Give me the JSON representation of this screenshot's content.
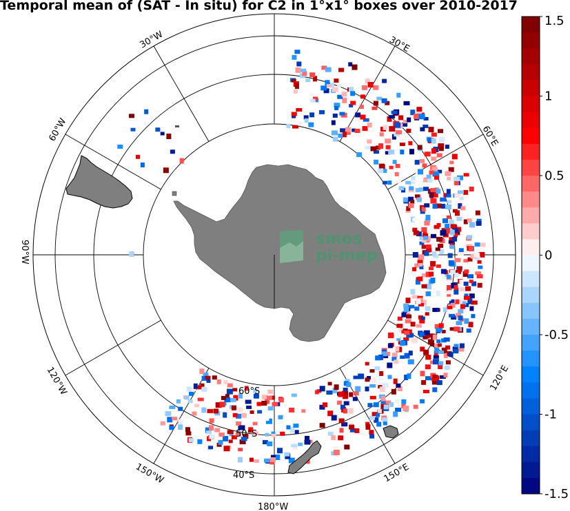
{
  "title": "Temporal mean of (SAT - In situ) for C2 in 1°x1° boxes over 2010-2017",
  "map": {
    "projection": "south-polar-stereographic",
    "boundary_latitude": "30°S",
    "longitude_labels": [
      "30°E",
      "60°E",
      "120°E",
      "150°E",
      "180°W",
      "150°W",
      "120°W",
      "90°W",
      "60°W",
      "30°W"
    ],
    "latitude_labels": [
      "60°S",
      "50°S",
      "40°S"
    ],
    "land_color": "#7f7f7f",
    "watermark": {
      "line1": "smos",
      "line2": "pi-mep"
    }
  },
  "colorbar": {
    "range": [
      -1.5,
      1.5
    ],
    "ticks": [
      "1.5",
      "1",
      "0.5",
      "0",
      "-0.5",
      "-1",
      "-1.5"
    ],
    "colormap": "blue-white-red, 30 discrete levels"
  }
}
